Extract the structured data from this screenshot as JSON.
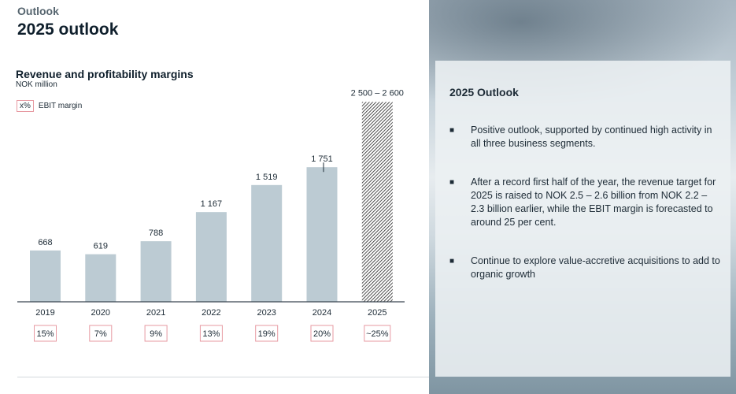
{
  "header": {
    "eyebrow": "Outlook",
    "title": "2025 outlook"
  },
  "chart_data": {
    "type": "bar",
    "title": "Revenue and profitability margins",
    "unit": "NOK million",
    "legend_box": "x%",
    "legend_label": "EBIT margin",
    "categories": [
      "2019",
      "2020",
      "2021",
      "2022",
      "2023",
      "2024",
      "2025"
    ],
    "values": [
      668,
      619,
      788,
      1167,
      1519,
      1751,
      2600
    ],
    "value_labels": [
      "668",
      "619",
      "788",
      "1 167",
      "1 519",
      "1 751",
      "2 500 – 2 600"
    ],
    "range_2025": [
      2500,
      2600
    ],
    "ebit_margins": [
      "15%",
      "7%",
      "9%",
      "13%",
      "19%",
      "20%",
      "~25%"
    ],
    "bar_color": "#bccbd3",
    "margin_box_color": "#e79aa2"
  },
  "panel": {
    "title": "2025 Outlook",
    "bullets": [
      "Positive outlook, supported by continued high activity in all three business segments.",
      "After a record first half of the year, the revenue target for 2025 is raised to NOK 2.5 – 2.6 billion from NOK 2.2 – 2.3 billion earlier, while the EBIT margin is forecasted to around 25 per cent.",
      "Continue to explore value-accretive acquisitions to add to organic growth"
    ]
  }
}
